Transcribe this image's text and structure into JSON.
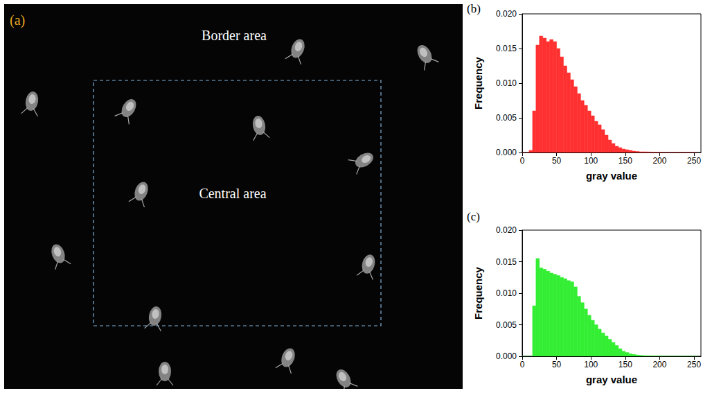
{
  "image_panel": {
    "label": "(a)",
    "texts": [
      "Border area",
      "Central area"
    ]
  },
  "chart_data": [
    {
      "type": "histogram",
      "panel": "(b)",
      "color": "#ff3030",
      "xlabel": "gray value",
      "ylabel": "Frequency",
      "bins": [
        0,
        5,
        10,
        15,
        20,
        25,
        30,
        35,
        40,
        45,
        50,
        55,
        60,
        65,
        70,
        75,
        80,
        85,
        90,
        95,
        100,
        105,
        110,
        115,
        120,
        125,
        130,
        135,
        140,
        145,
        150,
        155,
        160,
        165,
        170,
        175,
        180,
        185,
        190,
        195,
        200,
        205,
        210,
        215,
        220,
        225,
        230,
        235,
        240,
        245,
        250,
        255
      ],
      "counts": [
        0,
        0,
        0.0003,
        0.006,
        0.0155,
        0.0168,
        0.0165,
        0.016,
        0.0163,
        0.016,
        0.015,
        0.0138,
        0.0125,
        0.0115,
        0.0105,
        0.0095,
        0.0085,
        0.0075,
        0.0068,
        0.006,
        0.0053,
        0.0045,
        0.004,
        0.0033,
        0.0025,
        0.0018,
        0.0013,
        0.0009,
        0.0007,
        0.0005,
        0.0004,
        0.0003,
        0.0002,
        0.00015,
        0.0001,
        0.0001,
        8e-05,
        6e-05,
        5e-05,
        4e-05,
        3e-05,
        2e-05,
        2e-05,
        2e-05,
        2e-05,
        2e-05,
        2e-05,
        2e-05,
        2e-05,
        2e-05,
        0
      ],
      "xlim": [
        0,
        260
      ],
      "xticks": [
        0,
        50,
        100,
        150,
        200,
        250
      ],
      "ylim": [
        0,
        0.02
      ],
      "yticks": [
        {
          "value": 0,
          "label": "0.000"
        },
        {
          "value": 0.005,
          "label": "0.005"
        },
        {
          "value": 0.01,
          "label": "0.010"
        },
        {
          "value": 0.015,
          "label": "0.015"
        },
        {
          "value": 0.02,
          "label": "0.020"
        }
      ],
      "grid": false
    },
    {
      "type": "histogram",
      "panel": "(c)",
      "color": "#33ee33",
      "xlabel": "gray value",
      "ylabel": "Frequency",
      "bins": [
        0,
        5,
        10,
        15,
        20,
        25,
        30,
        35,
        40,
        45,
        50,
        55,
        60,
        65,
        70,
        75,
        80,
        85,
        90,
        95,
        100,
        105,
        110,
        115,
        120,
        125,
        130,
        135,
        140,
        145,
        150,
        155,
        160,
        165,
        170,
        175,
        180,
        185,
        190,
        195,
        200,
        205,
        210,
        215,
        220,
        225,
        230,
        235,
        240,
        245,
        250,
        255
      ],
      "counts": [
        0,
        0,
        0,
        0.008,
        0.0155,
        0.014,
        0.0138,
        0.0135,
        0.0132,
        0.013,
        0.0128,
        0.0125,
        0.0123,
        0.012,
        0.0118,
        0.011,
        0.0095,
        0.0085,
        0.0075,
        0.0065,
        0.0057,
        0.005,
        0.0043,
        0.0037,
        0.0032,
        0.0027,
        0.0022,
        0.0017,
        0.0012,
        0.0008,
        0.0006,
        0.0004,
        0.0003,
        0.0002,
        0.00015,
        0.0001,
        8e-05,
        6e-05,
        5e-05,
        4e-05,
        3e-05,
        2e-05,
        1e-05,
        1e-05,
        1e-05,
        1e-05,
        1e-05,
        1e-05,
        1e-05,
        1e-05,
        0
      ],
      "xlim": [
        0,
        260
      ],
      "xticks": [
        0,
        50,
        100,
        150,
        200,
        250
      ],
      "ylim": [
        0,
        0.02
      ],
      "yticks": [
        {
          "value": 0,
          "label": "0.000"
        },
        {
          "value": 0.005,
          "label": "0.005"
        },
        {
          "value": 0.01,
          "label": "0.010"
        },
        {
          "value": 0.015,
          "label": "0.015"
        },
        {
          "value": 0.02,
          "label": "0.020"
        }
      ],
      "grid": false
    }
  ]
}
